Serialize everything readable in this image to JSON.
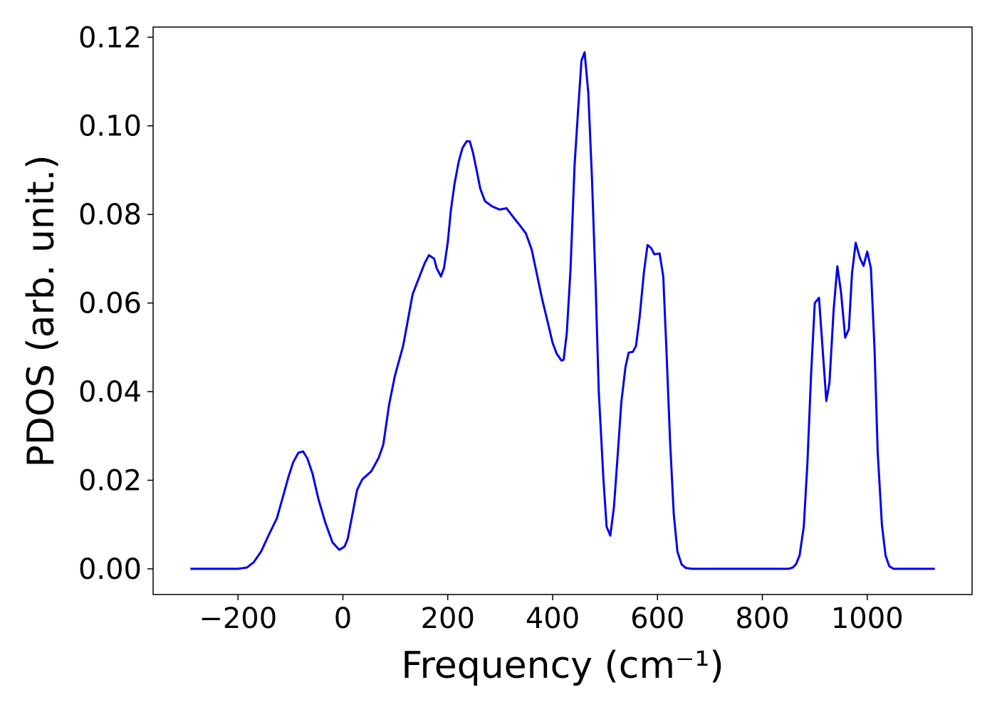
{
  "chart_data": {
    "type": "line",
    "xlabel": "Frequency (cm⁻¹)",
    "ylabel": "PDOS (arb. unit.)",
    "xlim": [
      -362,
      1200
    ],
    "ylim": [
      -0.0058,
      0.1223
    ],
    "xticks": [
      {
        "value": -200,
        "label": "−200"
      },
      0,
      200,
      400,
      600,
      800,
      1000
    ],
    "yticks": [
      {
        "value": 0,
        "label": "0.00"
      },
      {
        "value": 0.02,
        "label": "0.02"
      },
      {
        "value": 0.04,
        "label": "0.04"
      },
      {
        "value": 0.06,
        "label": "0.06"
      },
      {
        "value": 0.08,
        "label": "0.08"
      },
      {
        "value": 0.1,
        "label": "0.10"
      },
      {
        "value": 0.12,
        "label": "0.12"
      }
    ],
    "grid": false,
    "series": [
      {
        "color": "#0000ee",
        "x": [
          -291,
          -200,
          -183,
          -170,
          -156,
          -142,
          -126,
          -115,
          -104,
          -95,
          -85,
          -76,
          -68,
          -58,
          -47,
          -34,
          -20,
          -7,
          3,
          9,
          18,
          27,
          37,
          54,
          68,
          77,
          88,
          99,
          115,
          133,
          156,
          164,
          174,
          179,
          187,
          193,
          200,
          206,
          213,
          221,
          228,
          236,
          242,
          248,
          255,
          262,
          271,
          285,
          299,
          312,
          323,
          339,
          349,
          360,
          380,
          393,
          400,
          408,
          417,
          421,
          427,
          434,
          442,
          449,
          455,
          461,
          468,
          475,
          482,
          488,
          497,
          503,
          510,
          517,
          524,
          531,
          539,
          545,
          553,
          559,
          566,
          574,
          581,
          588,
          594,
          604,
          611,
          617,
          624,
          631,
          638,
          646,
          654,
          665,
          850,
          858,
          864,
          871,
          879,
          886,
          893,
          900,
          908,
          915,
          922,
          928,
          936,
          943,
          950,
          958,
          965,
          971,
          978,
          986,
          993,
          1000,
          1007,
          1014,
          1020,
          1028,
          1035,
          1042,
          1050,
          1129
        ],
        "values": [
          0,
          0,
          0.0003,
          0.0015,
          0.0039,
          0.0075,
          0.0114,
          0.016,
          0.0207,
          0.024,
          0.0262,
          0.0265,
          0.025,
          0.0215,
          0.0159,
          0.0106,
          0.006,
          0.0043,
          0.005,
          0.0067,
          0.0122,
          0.0178,
          0.0202,
          0.022,
          0.025,
          0.028,
          0.037,
          0.0435,
          0.0504,
          0.062,
          0.069,
          0.0708,
          0.07,
          0.0678,
          0.066,
          0.068,
          0.0737,
          0.081,
          0.087,
          0.092,
          0.095,
          0.0965,
          0.0965,
          0.094,
          0.09,
          0.0858,
          0.083,
          0.0818,
          0.0811,
          0.0814,
          0.0797,
          0.0773,
          0.0757,
          0.0721,
          0.0609,
          0.0545,
          0.051,
          0.0485,
          0.047,
          0.0472,
          0.0532,
          0.0673,
          0.0914,
          0.1043,
          0.1147,
          0.1166,
          0.1075,
          0.0882,
          0.0641,
          0.04,
          0.02,
          0.0095,
          0.0075,
          0.014,
          0.0255,
          0.0376,
          0.0456,
          0.0488,
          0.049,
          0.0503,
          0.0569,
          0.0668,
          0.0731,
          0.0724,
          0.071,
          0.0712,
          0.066,
          0.0496,
          0.0288,
          0.0124,
          0.0039,
          0.001,
          0.0002,
          0,
          0,
          0.0003,
          0.001,
          0.003,
          0.0095,
          0.024,
          0.044,
          0.06,
          0.0612,
          0.0496,
          0.0379,
          0.042,
          0.0585,
          0.0683,
          0.0625,
          0.0522,
          0.0541,
          0.0667,
          0.0736,
          0.0702,
          0.0684,
          0.0716,
          0.0679,
          0.0496,
          0.0263,
          0.01,
          0.003,
          0.0006,
          0,
          0
        ]
      }
    ]
  }
}
